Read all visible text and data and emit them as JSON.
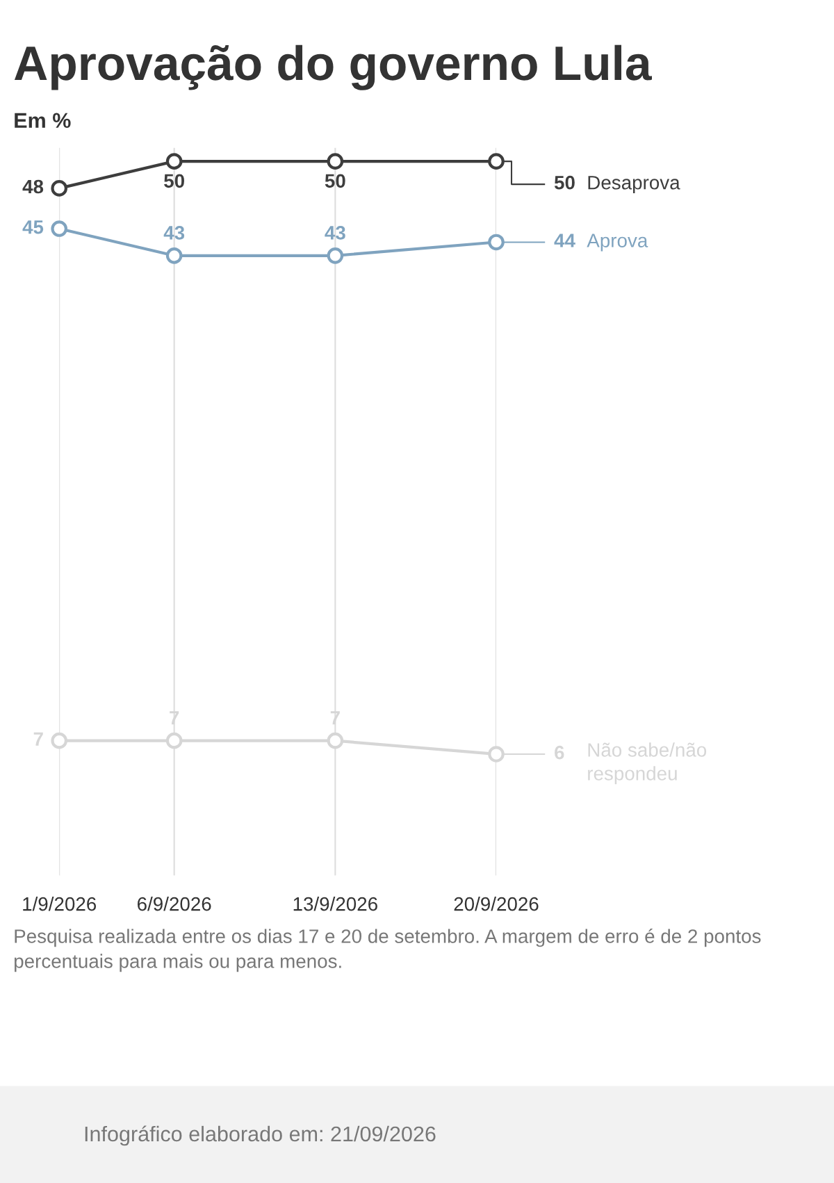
{
  "chart_data": {
    "type": "line",
    "title": "Aprovação do governo Lula",
    "subtitle": "Em %",
    "x": [
      "2026-09-01",
      "2026-09-06",
      "2026-09-13",
      "2026-09-20"
    ],
    "series": [
      {
        "name": "Desaprova",
        "color": "#3d3d3d",
        "values": [
          48,
          50,
          50,
          50
        ]
      },
      {
        "name": "Aprova",
        "color": "#7fa3bf",
        "values": [
          45,
          43,
          43,
          44
        ]
      },
      {
        "name": "Não sabe/não respondeu",
        "color": "#d6d6d6",
        "values": [
          7,
          7,
          7,
          6
        ]
      }
    ],
    "xlim": [
      "2026-09-01",
      "2026-09-20"
    ],
    "xticks": [
      {
        "value": "2026-09-01",
        "label": "1/9/2026"
      },
      {
        "value": "2026-09-06",
        "label": "6/9/2026"
      },
      {
        "value": "2026-09-13",
        "label": "13/9/2026"
      },
      {
        "value": "2026-09-20",
        "label": "20/9/2026"
      }
    ],
    "tick_labels": "x",
    "grid": "x",
    "marker": "circle",
    "line_style": "solid",
    "data_labels": true,
    "legend": "right",
    "annotations": [
      "Pesquisa realizada entre os dias 17 e 20 de setembro. A margem de erro é de 2 pontos percentuais para mais ou para menos.",
      "Infográfico elaborado em: 21/09/2026"
    ]
  }
}
